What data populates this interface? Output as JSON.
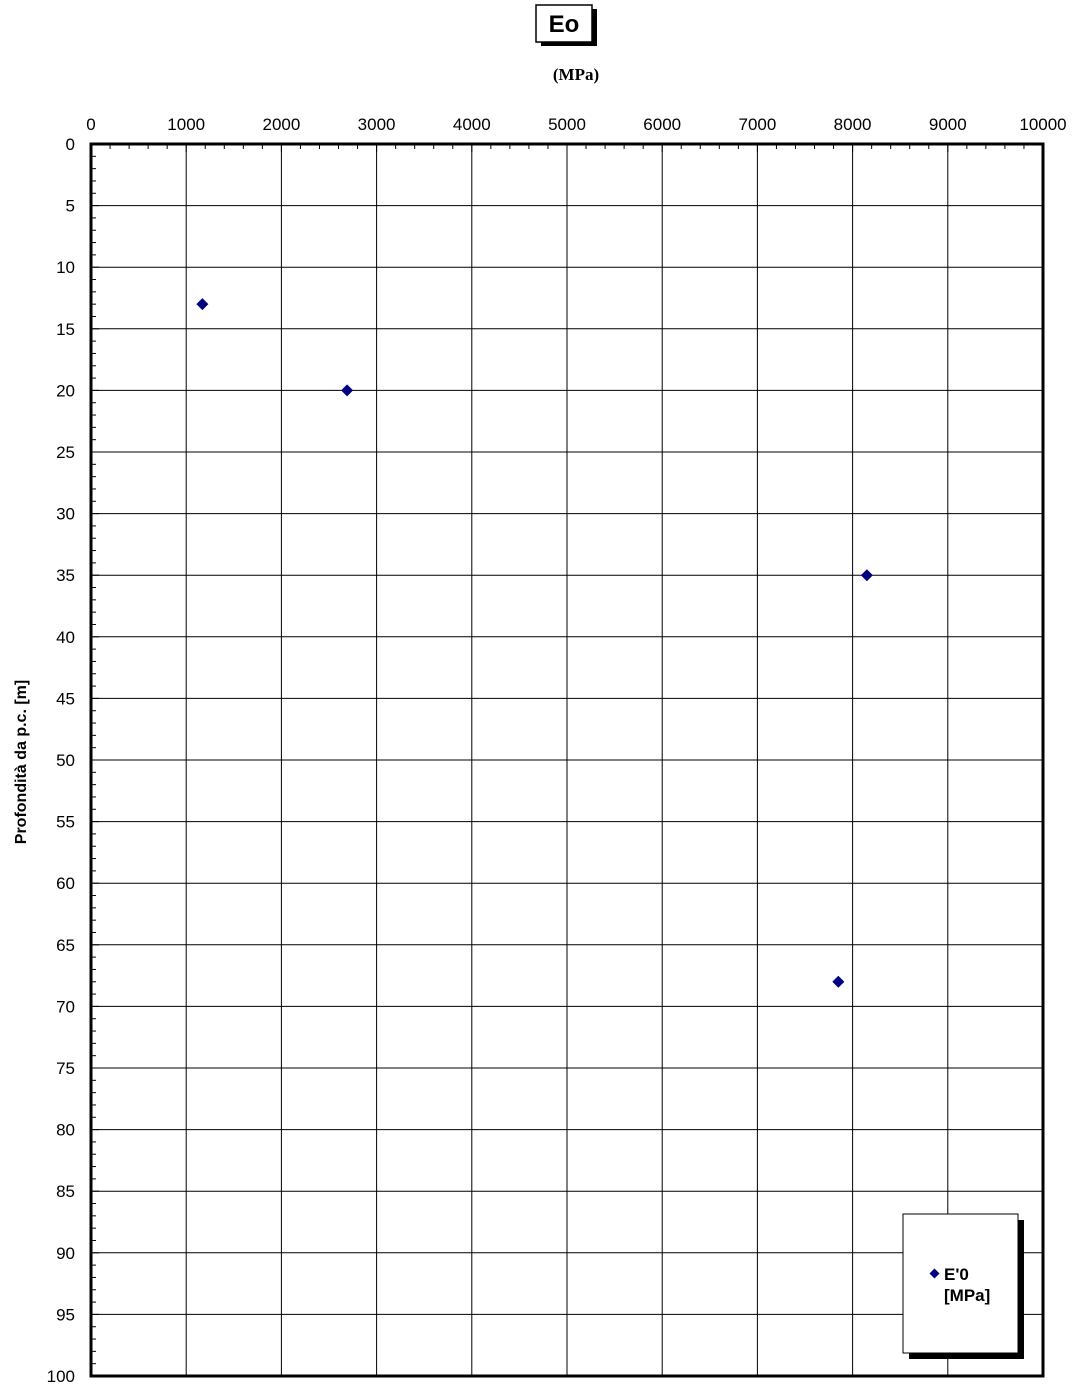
{
  "chart_data": {
    "type": "scatter",
    "title": "Eo",
    "subtitle": "(MPa)",
    "xlabel": "",
    "ylabel": "Profondità da p.c. [m]",
    "xlim": [
      0,
      10000
    ],
    "ylim": [
      0,
      100
    ],
    "y_inverted": true,
    "x_axis_position": "top",
    "x_ticks": [
      0,
      1000,
      2000,
      3000,
      4000,
      5000,
      6000,
      7000,
      8000,
      9000,
      10000
    ],
    "y_ticks": [
      0,
      5,
      10,
      15,
      20,
      25,
      30,
      35,
      40,
      45,
      50,
      55,
      60,
      65,
      70,
      75,
      80,
      85,
      90,
      95,
      100
    ],
    "grid": true,
    "legend_position": "bottom-right",
    "series": [
      {
        "name_line1": "E'0",
        "name_line2": "[MPa]",
        "color": "#000080",
        "marker": "diamond",
        "points": [
          {
            "x": 1170,
            "y": 13
          },
          {
            "x": 2690,
            "y": 20
          },
          {
            "x": 8150,
            "y": 35
          },
          {
            "x": 7850,
            "y": 68
          }
        ]
      }
    ]
  }
}
